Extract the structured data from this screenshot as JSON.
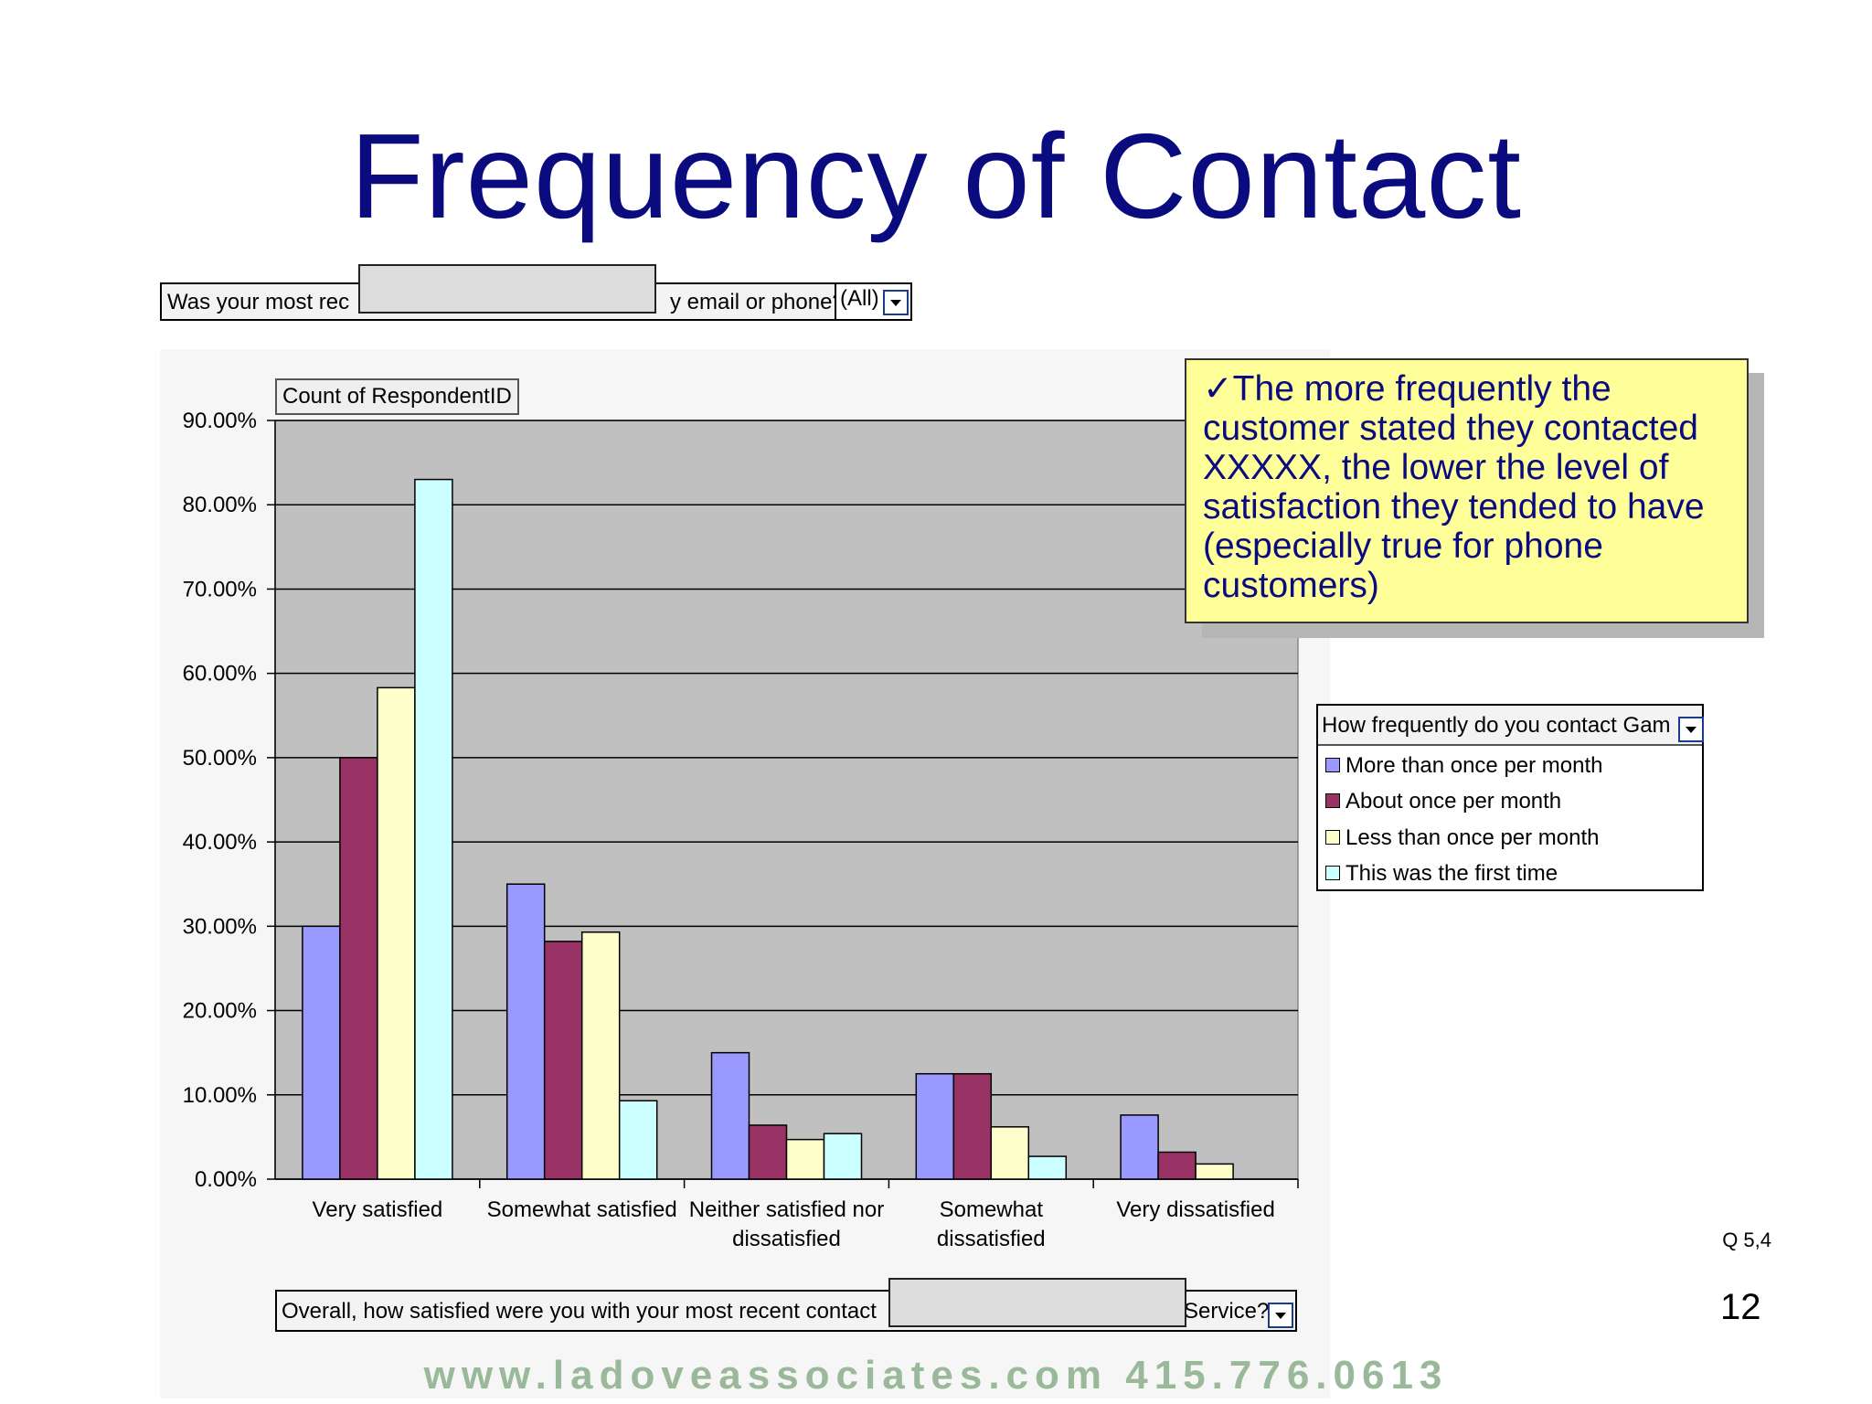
{
  "title": "Frequency of Contact",
  "page_filter": {
    "label_start": "Was your most rec",
    "label_end": "y email or phone?",
    "value": "(All)"
  },
  "data_field": "Count of RespondentID",
  "callout": "✓The more frequently the customer stated they contacted XXXXX, the lower the level of satisfaction they tended to have (especially true for phone customers)",
  "legend_title": "How frequently do you contact Gam",
  "category_field": {
    "label_start": "Overall, how satisfied were you with your most recent contact",
    "label_end": "Service?"
  },
  "question_ref": "Q 5,4",
  "page_number": "12",
  "footer_text": "www.ladoveassociates.com   415.776.0613",
  "colors": {
    "title": "#0b0b80",
    "plot_area": "#c0c0c0",
    "callout_bg": "#ffff99"
  },
  "chart_data": {
    "type": "bar",
    "categories": [
      "Very satisfied",
      "Somewhat satisfied",
      "Neither satisfied nor dissatisfied",
      "Somewhat dissatisfied",
      "Very dissatisfied"
    ],
    "category_label_lines": [
      [
        "Very satisfied"
      ],
      [
        "Somewhat satisfied"
      ],
      [
        "Neither satisfied nor",
        "dissatisfied"
      ],
      [
        "Somewhat",
        "dissatisfied"
      ],
      [
        "Very dissatisfied"
      ]
    ],
    "series": [
      {
        "name": "More than once per month",
        "color": "#9999ff",
        "values": [
          30.0,
          35.0,
          15.0,
          12.5,
          7.6
        ]
      },
      {
        "name": "About once per month",
        "color": "#993366",
        "values": [
          50.0,
          28.2,
          6.4,
          12.5,
          3.2
        ]
      },
      {
        "name": "Less than once per month",
        "color": "#ffffcc",
        "values": [
          58.3,
          29.3,
          4.7,
          6.2,
          1.8
        ]
      },
      {
        "name": "This was the first time",
        "color": "#ccffff",
        "values": [
          83.0,
          9.3,
          5.4,
          2.7,
          0
        ]
      }
    ],
    "yticks": [
      "0.00%",
      "10.00%",
      "20.00%",
      "30.00%",
      "40.00%",
      "50.00%",
      "60.00%",
      "70.00%",
      "80.00%",
      "90.00%"
    ],
    "ylim": [
      0,
      90
    ],
    "grid": true,
    "legend": "right"
  }
}
